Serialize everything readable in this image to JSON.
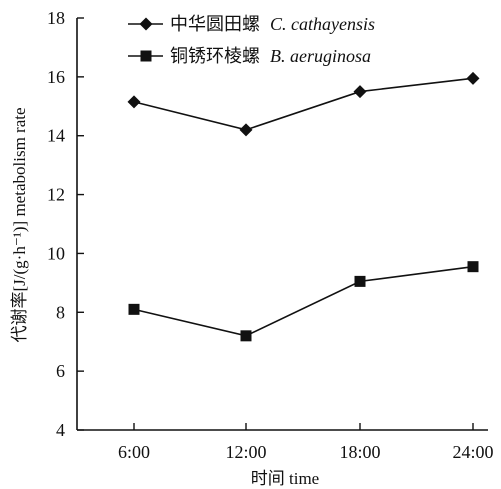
{
  "chart_data": {
    "type": "line",
    "x_title": "时间 time",
    "y_title": "代谢率[J/(g·h⁻¹)] metabolism rate",
    "categories": [
      "6:00",
      "12:00",
      "18:00",
      "24:00"
    ],
    "ylim": [
      4,
      18
    ],
    "y_ticks": [
      4,
      6,
      8,
      10,
      12,
      14,
      16,
      18
    ],
    "grid": false,
    "legend_position": "top",
    "series": [
      {
        "name_cn": "中华圆田螺",
        "name_latin": "C. cathayensis",
        "marker": "diamond",
        "color": "#111111",
        "values": [
          15.15,
          14.2,
          15.5,
          15.95
        ]
      },
      {
        "name_cn": "铜锈环棱螺",
        "name_latin": "B. aeruginosa",
        "marker": "square",
        "color": "#111111",
        "values": [
          8.1,
          7.2,
          9.05,
          9.55
        ]
      }
    ]
  }
}
